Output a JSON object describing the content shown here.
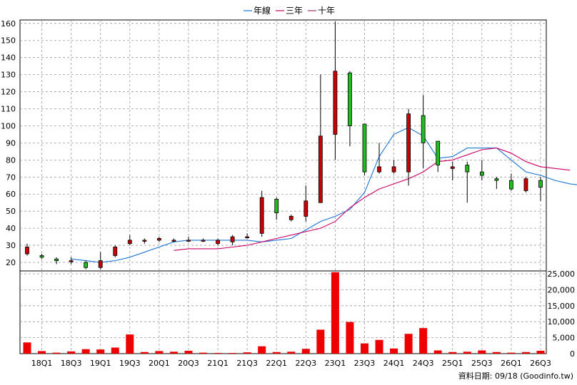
{
  "legend": [
    {
      "name": "年線",
      "color": "#1a75d2"
    },
    {
      "name": "三年",
      "color": "#cc0066"
    },
    {
      "name": "十年",
      "color": "#993366"
    }
  ],
  "footer_text": "資料日期: 09/18  (Goodinfo.tw)",
  "colors": {
    "up": "#cc0000",
    "down": "#22bb22",
    "volume": "#ee0000",
    "grid": "#999999"
  },
  "chart_data": [
    {
      "type": "candlestick",
      "title": "",
      "y_ticks": [
        20,
        30,
        40,
        50,
        60,
        70,
        80,
        90,
        100,
        110,
        120,
        130,
        140,
        150,
        160
      ],
      "ylim": [
        15,
        162
      ],
      "x_tick_labels": [
        "18Q1",
        "18Q3",
        "19Q1",
        "19Q3",
        "20Q1",
        "20Q3",
        "21Q1",
        "21Q3",
        "22Q1",
        "22Q3",
        "23Q1",
        "23Q3",
        "24Q1",
        "24Q3",
        "25Q1",
        "25Q3",
        "26Q1",
        "26Q3"
      ],
      "grid": true,
      "legend_position": "top-center",
      "candles": [
        {
          "o": 25,
          "h": 31,
          "l": 24,
          "c": 29
        },
        {
          "o": 24,
          "h": 25,
          "l": 22,
          "c": 23
        },
        {
          "o": 22,
          "h": 23,
          "l": 19,
          "c": 21
        },
        {
          "o": 21,
          "h": 23,
          "l": 19,
          "c": 21
        },
        {
          "o": 20,
          "h": 21,
          "l": 16,
          "c": 17
        },
        {
          "o": 17,
          "h": 26,
          "l": 16,
          "c": 21
        },
        {
          "o": 24,
          "h": 30,
          "l": 23,
          "c": 29
        },
        {
          "o": 31,
          "h": 36,
          "l": 30,
          "c": 33
        },
        {
          "o": 33,
          "h": 34,
          "l": 31,
          "c": 33
        },
        {
          "o": 33,
          "h": 35,
          "l": 32,
          "c": 34
        },
        {
          "o": 33,
          "h": 34,
          "l": 32,
          "c": 33
        },
        {
          "o": 33,
          "h": 35,
          "l": 32,
          "c": 33
        },
        {
          "o": 33,
          "h": 34,
          "l": 32,
          "c": 33
        },
        {
          "o": 31,
          "h": 34,
          "l": 30,
          "c": 33
        },
        {
          "o": 32,
          "h": 36,
          "l": 30,
          "c": 35
        },
        {
          "o": 35,
          "h": 37,
          "l": 34,
          "c": 35
        },
        {
          "o": 37,
          "h": 62,
          "l": 35,
          "c": 58
        },
        {
          "o": 57,
          "h": 58,
          "l": 45,
          "c": 49
        },
        {
          "o": 45,
          "h": 48,
          "l": 44,
          "c": 47
        },
        {
          "o": 47,
          "h": 65,
          "l": 44,
          "c": 56
        },
        {
          "o": 55,
          "h": 130,
          "l": 55,
          "c": 94
        },
        {
          "o": 95,
          "h": 161,
          "l": 80,
          "c": 132
        },
        {
          "o": 131,
          "h": 132,
          "l": 88,
          "c": 100
        },
        {
          "o": 101,
          "h": 101,
          "l": 71,
          "c": 73
        },
        {
          "o": 73,
          "h": 90,
          "l": 72,
          "c": 76
        },
        {
          "o": 73,
          "h": 80,
          "l": 72,
          "c": 76
        },
        {
          "o": 73,
          "h": 110,
          "l": 65,
          "c": 107
        },
        {
          "o": 106,
          "h": 118,
          "l": 75,
          "c": 90
        },
        {
          "o": 91,
          "h": 91,
          "l": 73,
          "c": 77
        },
        {
          "o": 75,
          "h": 79,
          "l": 68,
          "c": 76
        },
        {
          "o": 77,
          "h": 79,
          "l": 55,
          "c": 73
        },
        {
          "o": 73,
          "h": 80,
          "l": 68,
          "c": 71
        },
        {
          "o": 69,
          "h": 70,
          "l": 63,
          "c": 68
        },
        {
          "o": 68,
          "h": 72,
          "l": 62,
          "c": 63
        },
        {
          "o": 62,
          "h": 70,
          "l": 61,
          "c": 69
        },
        {
          "o": 68,
          "h": 70,
          "l": 56,
          "c": 64
        }
      ],
      "series": [
        {
          "name": "年線",
          "start_index": 3,
          "values": [
            22,
            21,
            20,
            21,
            23,
            26,
            29,
            32,
            33,
            33,
            33,
            33,
            33,
            32,
            33,
            34,
            39,
            44,
            47,
            51,
            61,
            82,
            95,
            99,
            94,
            81,
            82,
            87,
            87,
            87,
            80,
            73,
            71,
            68,
            66,
            65
          ]
        },
        {
          "name": "三年",
          "start_index": 10,
          "values": [
            27,
            28,
            28,
            28,
            29,
            30,
            32,
            34,
            36,
            38,
            40,
            44,
            52,
            58,
            63,
            66,
            69,
            73,
            79,
            80,
            83,
            86,
            87,
            84,
            79,
            76,
            75,
            74
          ]
        }
      ]
    },
    {
      "type": "bar",
      "title": "",
      "y_ticks": [
        0,
        5000,
        10000,
        15000,
        20000,
        25000
      ],
      "y_tick_labels": [
        "0",
        "5,000",
        "10,000",
        "15,000",
        "20,000",
        "25,000"
      ],
      "ylim": [
        0,
        25000
      ],
      "grid": true,
      "values": [
        3500,
        800,
        300,
        700,
        1400,
        1300,
        1900,
        6000,
        500,
        800,
        600,
        900,
        300,
        200,
        200,
        400,
        2300,
        500,
        600,
        1500,
        7500,
        25500,
        9900,
        3200,
        4300,
        1600,
        6200,
        8000,
        1000,
        500,
        600,
        1000,
        500,
        300,
        500,
        900
      ]
    }
  ]
}
